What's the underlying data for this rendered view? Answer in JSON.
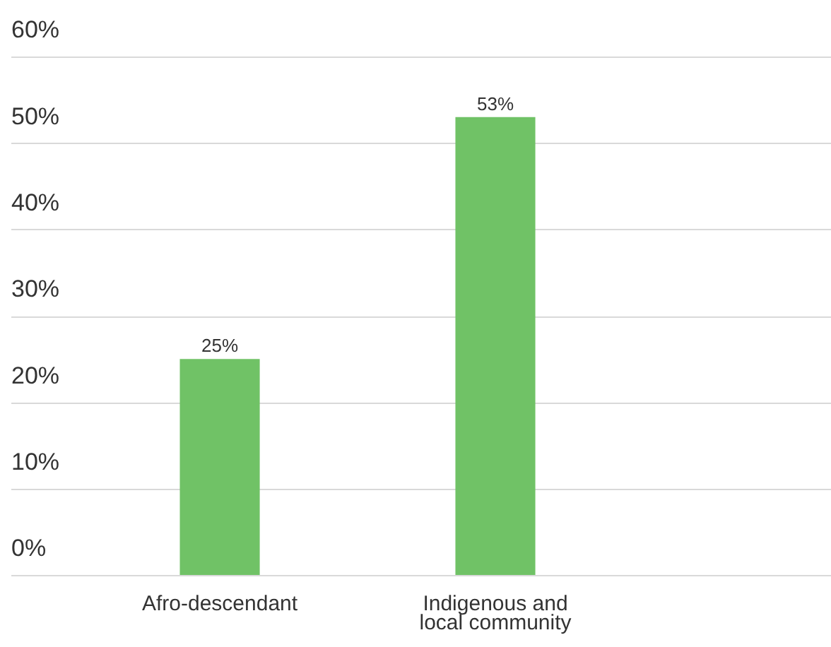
{
  "chart_data": {
    "type": "bar",
    "categories": [
      "Afro-descendant",
      "Indigenous and local community"
    ],
    "values": [
      25,
      53
    ],
    "value_labels": [
      "25%",
      "53%"
    ],
    "color": "#70c266",
    "ylim": [
      0,
      60
    ],
    "yticks": [
      {
        "value": 0,
        "label": "0%"
      },
      {
        "value": 10,
        "label": "10%"
      },
      {
        "value": 20,
        "label": "20%"
      },
      {
        "value": 30,
        "label": "30%"
      },
      {
        "value": 40,
        "label": "40%"
      },
      {
        "value": 50,
        "label": "50%"
      },
      {
        "value": 60,
        "label": "60%"
      }
    ],
    "grid": "y",
    "legend": false
  }
}
